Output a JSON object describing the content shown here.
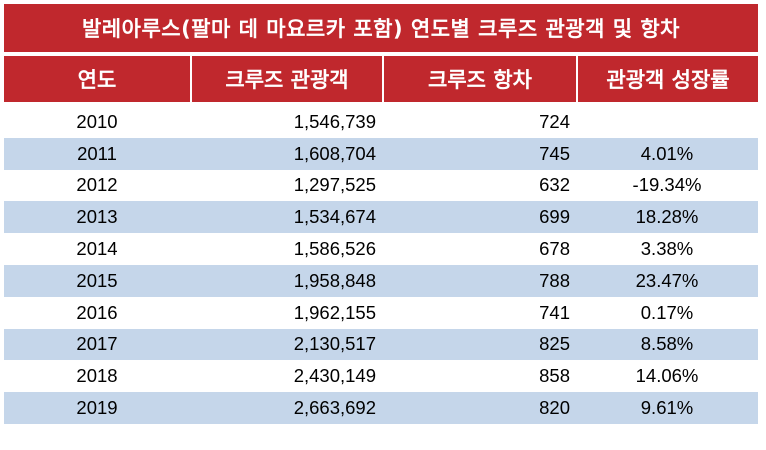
{
  "title": "발레아루스(팔마 데 마요르카 포함) 연도별 크루즈 관광객 및 항차",
  "colors": {
    "header_bg": "#c0282d",
    "header_text": "#ffffff",
    "alt_row_bg": "#c5d6ea"
  },
  "columns": {
    "year": "연도",
    "visitors": "크루즈 관광객",
    "calls": "크루즈 항차",
    "growth": "관광객 성장률"
  },
  "rows": [
    {
      "year": "2010",
      "visitors": "1,546,739",
      "calls": "724",
      "growth": ""
    },
    {
      "year": "2011",
      "visitors": "1,608,704",
      "calls": "745",
      "growth": "4.01%"
    },
    {
      "year": "2012",
      "visitors": "1,297,525",
      "calls": "632",
      "growth": "-19.34%"
    },
    {
      "year": "2013",
      "visitors": "1,534,674",
      "calls": "699",
      "growth": "18.28%"
    },
    {
      "year": "2014",
      "visitors": "1,586,526",
      "calls": "678",
      "growth": "3.38%"
    },
    {
      "year": "2015",
      "visitors": "1,958,848",
      "calls": "788",
      "growth": "23.47%"
    },
    {
      "year": "2016",
      "visitors": "1,962,155",
      "calls": "741",
      "growth": "0.17%"
    },
    {
      "year": "2017",
      "visitors": "2,130,517",
      "calls": "825",
      "growth": "8.58%"
    },
    {
      "year": "2018",
      "visitors": "2,430,149",
      "calls": "858",
      "growth": "14.06%"
    },
    {
      "year": "2019",
      "visitors": "2,663,692",
      "calls": "820",
      "growth": "9.61%"
    }
  ]
}
